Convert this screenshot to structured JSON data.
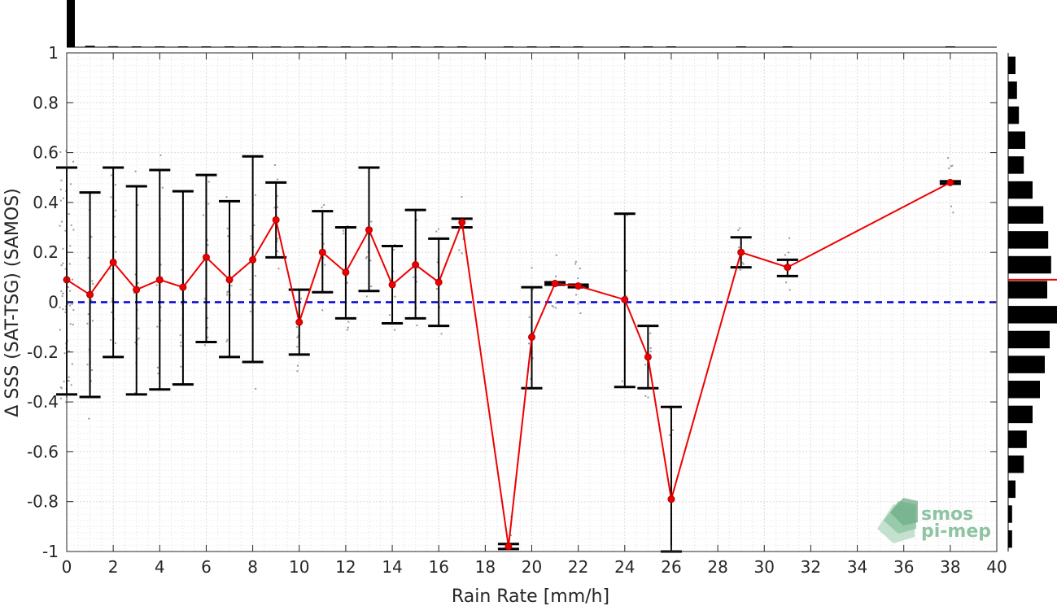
{
  "chart_data": {
    "type": "line",
    "xlabel": "Rain Rate [mm/h]",
    "ylabel": "Δ SSS (SAT-TSG) (SAMOS)",
    "xlim": [
      0,
      40
    ],
    "ylim": [
      -1,
      1
    ],
    "xticks": [
      0,
      2,
      4,
      6,
      8,
      10,
      12,
      14,
      16,
      18,
      20,
      22,
      24,
      26,
      28,
      30,
      32,
      34,
      36,
      38,
      40
    ],
    "yticks": [
      1,
      0.8,
      0.6,
      0.4,
      0.2,
      0,
      -0.2,
      -0.4,
      -0.6,
      -0.8,
      -1
    ],
    "ytick_labels": [
      "1",
      "0.8",
      "0.6",
      "0.4",
      "0.2",
      "0",
      "-0.2",
      "-0.4",
      "-0.6",
      "-0.8",
      "-1"
    ],
    "grid": true,
    "reference_line": {
      "y": 0,
      "style": "dashed",
      "color": "#0000dd"
    },
    "series": [
      {
        "color": "#ee0000",
        "x": [
          0,
          1,
          2,
          3,
          4,
          5,
          6,
          7,
          8,
          9,
          10,
          11,
          12,
          13,
          14,
          15,
          16,
          17,
          19,
          20,
          21,
          22,
          24,
          25,
          26,
          29,
          31,
          38
        ],
        "y": [
          0.09,
          0.03,
          0.16,
          0.05,
          0.09,
          0.06,
          0.18,
          0.09,
          0.17,
          0.33,
          -0.08,
          0.2,
          0.12,
          0.29,
          0.07,
          0.15,
          0.08,
          0.32,
          -0.98,
          -0.14,
          0.075,
          0.065,
          0.01,
          -0.22,
          -0.79,
          0.2,
          0.14,
          0.48
        ],
        "err_low": [
          -0.37,
          -0.38,
          -0.22,
          -0.37,
          -0.35,
          -0.33,
          -0.16,
          -0.22,
          -0.24,
          0.18,
          -0.21,
          0.04,
          -0.065,
          0.045,
          -0.085,
          -0.065,
          -0.095,
          0.3,
          -0.99,
          -0.345,
          0.07,
          0.06,
          -0.34,
          -0.345,
          -1.0,
          0.14,
          0.105,
          0.475
        ],
        "err_high": [
          0.54,
          0.44,
          0.54,
          0.465,
          0.53,
          0.445,
          0.51,
          0.405,
          0.585,
          0.48,
          0.05,
          0.365,
          0.3,
          0.54,
          0.225,
          0.37,
          0.255,
          0.335,
          -0.97,
          0.06,
          0.08,
          0.07,
          0.355,
          -0.095,
          -0.42,
          0.26,
          0.17,
          0.485
        ]
      }
    ],
    "top_histogram": {
      "x": [
        0,
        1,
        2,
        3,
        4,
        5,
        6,
        7,
        8,
        9,
        10,
        11,
        12,
        13,
        14,
        15,
        16,
        17,
        19,
        20,
        21,
        22,
        24,
        25,
        26,
        29,
        31,
        38
      ],
      "relative_counts": [
        1.0,
        0.03,
        0.02,
        0.015,
        0.012,
        0.01,
        0.01,
        0.008,
        0.008,
        0.006,
        0.005,
        0.005,
        0.004,
        0.004,
        0.004,
        0.003,
        0.003,
        0.002,
        0.002,
        0.002,
        0.002,
        0.002,
        0.002,
        0.002,
        0.002,
        0.002,
        0.002,
        0.002
      ]
    },
    "right_histogram": {
      "y_centers": [
        0.95,
        0.85,
        0.75,
        0.65,
        0.55,
        0.45,
        0.35,
        0.25,
        0.15,
        0.05,
        -0.05,
        -0.15,
        -0.25,
        -0.35,
        -0.45,
        -0.55,
        -0.65,
        -0.75,
        -0.85,
        -0.95
      ],
      "relative_counts": [
        0.15,
        0.18,
        0.22,
        0.35,
        0.32,
        0.5,
        0.72,
        0.82,
        0.88,
        0.8,
        1.0,
        0.85,
        0.75,
        0.65,
        0.5,
        0.38,
        0.32,
        0.15,
        0.08,
        0.08
      ],
      "mean_line": {
        "y": 0.09,
        "color": "#ee0000"
      }
    }
  },
  "logo": {
    "line1": "smos",
    "line2": "pi-mep"
  }
}
